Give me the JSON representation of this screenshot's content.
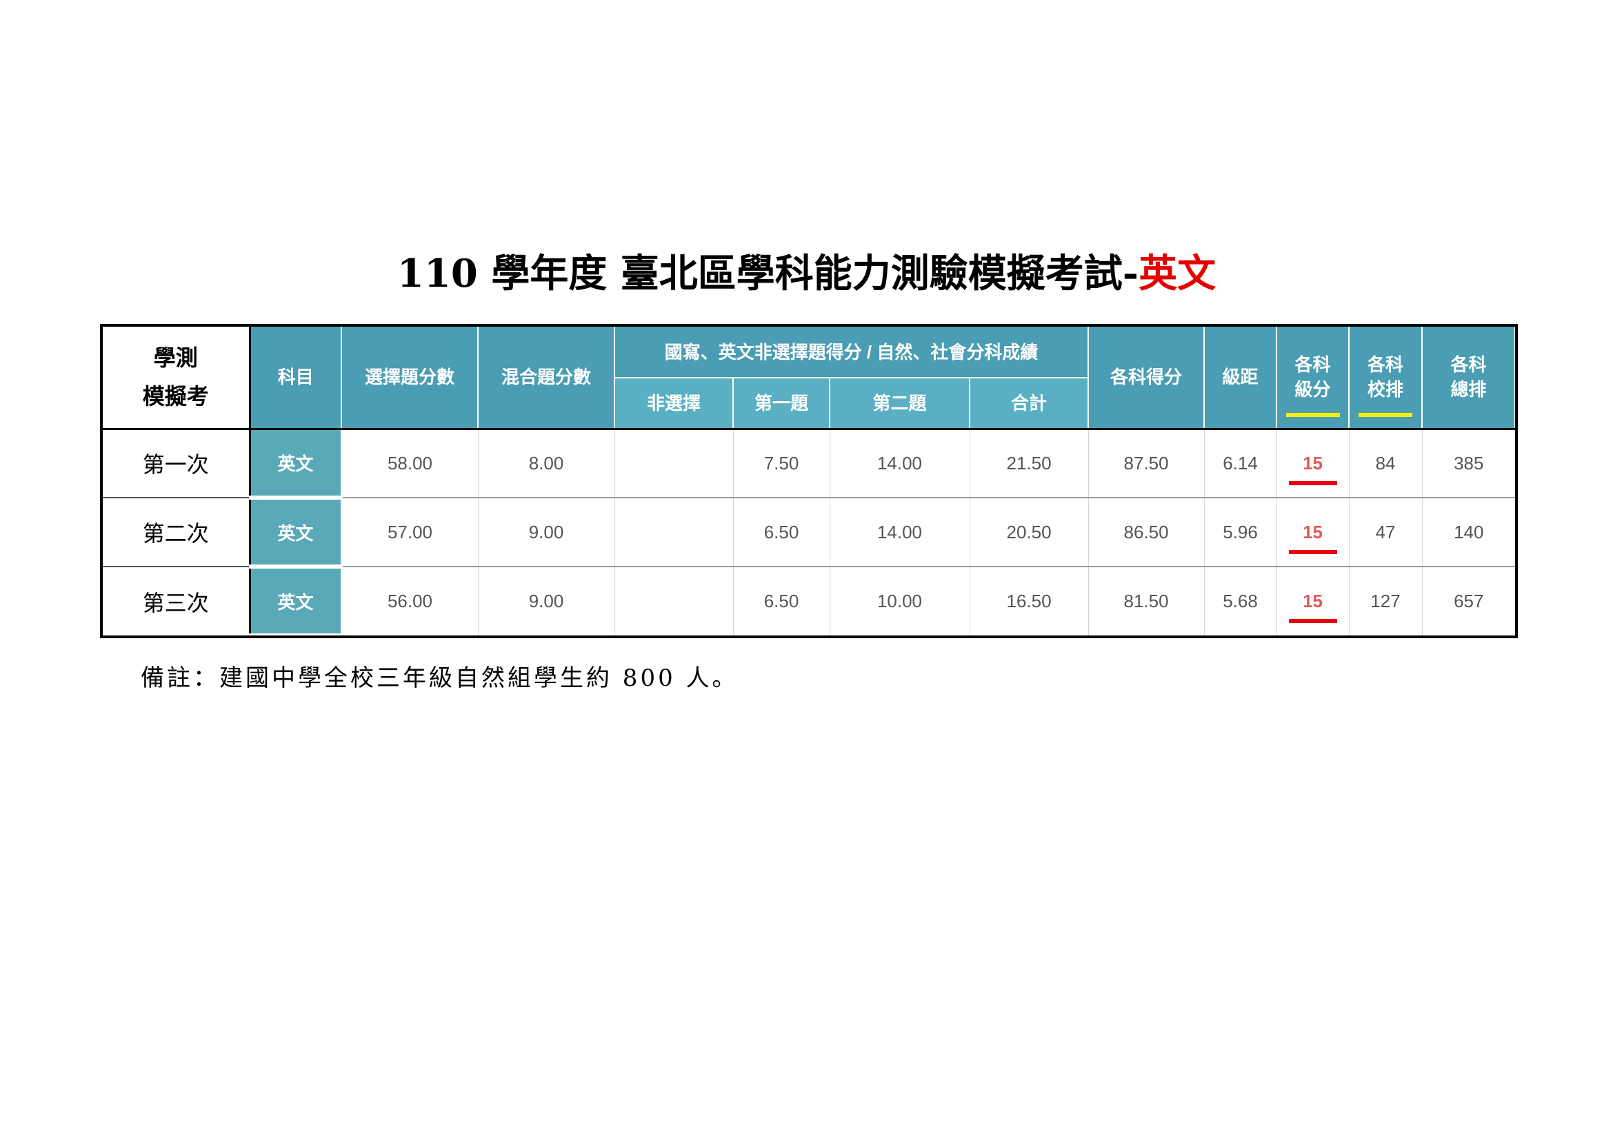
{
  "title": {
    "main": "110 學年度  臺北區學科能力測驗模擬考試-",
    "subject": "英文"
  },
  "table": {
    "row_label_header_line1": "學測",
    "row_label_header_line2": "模擬考",
    "headers": {
      "subject": "科目",
      "choice_score": "選擇題分數",
      "mixed_score": "混合題分數",
      "group": "國寫、英文非選擇題得分 / 自然、社會分科成績",
      "non_choice": "非選擇",
      "q1": "第一題",
      "q2": "第二題",
      "total": "合計",
      "subject_score": "各科得分",
      "interval": "級距",
      "grade_line1": "各科",
      "grade_line2": "級分",
      "school_rank_line1": "各科",
      "school_rank_line2": "校排",
      "overall_rank_line1": "各科",
      "overall_rank_line2": "總排"
    },
    "rows": [
      {
        "label": "第一次",
        "subject": "英文",
        "choice_score": "58.00",
        "mixed_score": "8.00",
        "non_choice": "",
        "q1": "7.50",
        "q2": "14.00",
        "total": "21.50",
        "subject_score": "87.50",
        "interval": "6.14",
        "grade": "15",
        "school_rank": "84",
        "overall_rank": "385"
      },
      {
        "label": "第二次",
        "subject": "英文",
        "choice_score": "57.00",
        "mixed_score": "9.00",
        "non_choice": "",
        "q1": "6.50",
        "q2": "14.00",
        "total": "20.50",
        "subject_score": "86.50",
        "interval": "5.96",
        "grade": "15",
        "school_rank": "47",
        "overall_rank": "140"
      },
      {
        "label": "第三次",
        "subject": "英文",
        "choice_score": "56.00",
        "mixed_score": "9.00",
        "non_choice": "",
        "q1": "6.50",
        "q2": "10.00",
        "total": "16.50",
        "subject_score": "81.50",
        "interval": "5.68",
        "grade": "15",
        "school_rank": "127",
        "overall_rank": "657"
      }
    ]
  },
  "note": "備註：建國中學全校三年級自然組學生約 800 人。",
  "colors": {
    "header_bg": "#4a9db2",
    "subheader_bg": "#5aafc2",
    "subject_bg": "#5aa9b9",
    "grade_text": "#e05a5a",
    "underline_red": "#e60012",
    "underline_yellow": "#f1f100",
    "title_accent": "#e60000"
  }
}
